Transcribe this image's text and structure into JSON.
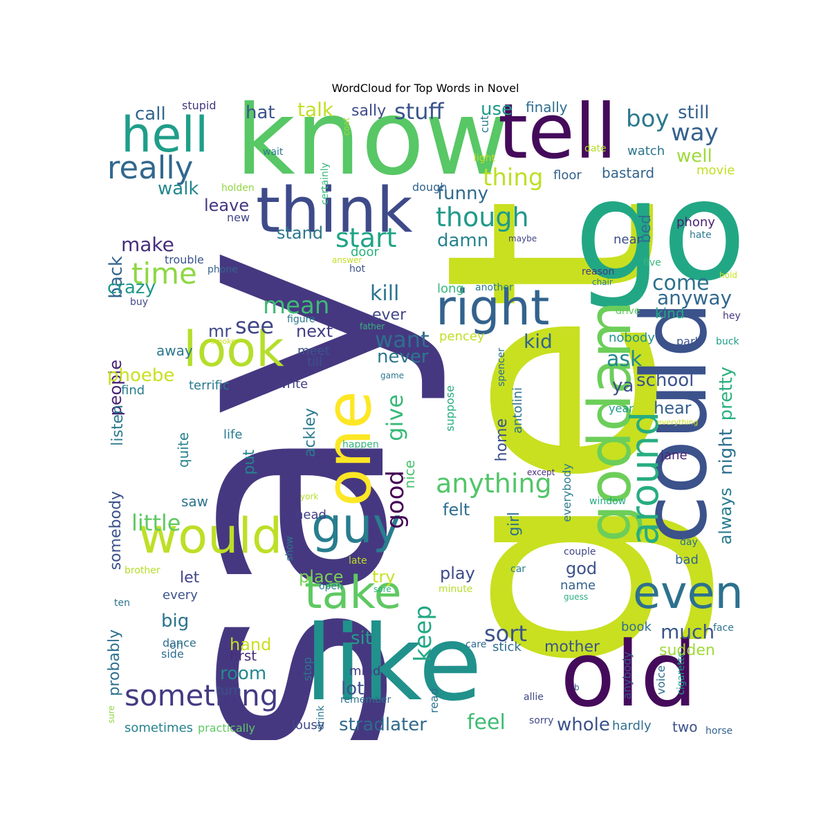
{
  "chart_data": {
    "type": "wordcloud",
    "title": "WordCloud for Top Words in Novel",
    "background": "#ffffff",
    "words": [
      {
        "text": "say",
        "color": "#463880"
      },
      {
        "text": "get",
        "color": "#c8e020"
      },
      {
        "text": "go",
        "color": "#22a785"
      },
      {
        "text": "know",
        "color": "#58c765"
      },
      {
        "text": "tell",
        "color": "#450b5b"
      },
      {
        "text": "like",
        "color": "#21918c"
      },
      {
        "text": "old",
        "color": "#450b5b"
      },
      {
        "text": "could",
        "color": "#3b528b"
      },
      {
        "text": "one",
        "color": "#fde725"
      },
      {
        "text": "think",
        "color": "#3e4a89"
      },
      {
        "text": "goddam",
        "color": "#6cce59"
      },
      {
        "text": "hell",
        "color": "#1f9e89"
      },
      {
        "text": "guy",
        "color": "#287d8e"
      },
      {
        "text": "right",
        "color": "#33638d"
      },
      {
        "text": "around",
        "color": "#27ad81"
      },
      {
        "text": "look",
        "color": "#b5de2b"
      },
      {
        "text": "would",
        "color": "#bddf26"
      },
      {
        "text": "take",
        "color": "#5ec962"
      },
      {
        "text": "even",
        "color": "#2d718e"
      },
      {
        "text": "something",
        "color": "#443a83"
      },
      {
        "text": "really",
        "color": "#31688e"
      },
      {
        "text": "time",
        "color": "#8fd744"
      },
      {
        "text": "start",
        "color": "#20a486"
      },
      {
        "text": "though",
        "color": "#1f9a8a"
      },
      {
        "text": "anything",
        "color": "#52c569"
      },
      {
        "text": "boy",
        "color": "#2a788e"
      },
      {
        "text": "way",
        "color": "#34618d"
      },
      {
        "text": "stuff",
        "color": "#3a548c"
      },
      {
        "text": "thing",
        "color": "#bddf26"
      },
      {
        "text": "mean",
        "color": "#3dbc74"
      },
      {
        "text": "want",
        "color": "#2e6e8e"
      },
      {
        "text": "keep",
        "color": "#22a884"
      },
      {
        "text": "give",
        "color": "#37b878"
      },
      {
        "text": "good",
        "color": "#440154"
      },
      {
        "text": "little",
        "color": "#5ec962"
      },
      {
        "text": "sort",
        "color": "#3b528b"
      },
      {
        "text": "much",
        "color": "#39558c"
      },
      {
        "text": "stradlater",
        "color": "#306a8e"
      },
      {
        "text": "feel",
        "color": "#3fbc73"
      },
      {
        "text": "whole",
        "color": "#3b528b"
      },
      {
        "text": "see",
        "color": "#404688"
      },
      {
        "text": "kill",
        "color": "#2b758e"
      },
      {
        "text": "talk",
        "color": "#c2df23"
      },
      {
        "text": "still",
        "color": "#34618d"
      },
      {
        "text": "well",
        "color": "#9dd93b"
      },
      {
        "text": "hat",
        "color": "#3a548c"
      },
      {
        "text": "call",
        "color": "#32658e"
      },
      {
        "text": "sally",
        "color": "#3e4c8a"
      },
      {
        "text": "use",
        "color": "#1e9b8a"
      },
      {
        "text": "finally",
        "color": "#2e6e8e"
      },
      {
        "text": "stupid",
        "color": "#453781"
      },
      {
        "text": "walk",
        "color": "#24878e"
      },
      {
        "text": "leave",
        "color": "#453781"
      },
      {
        "text": "back",
        "color": "#32658e"
      },
      {
        "text": "make",
        "color": "#472d7b"
      },
      {
        "text": "crazy",
        "color": "#1f988b"
      },
      {
        "text": "funny",
        "color": "#306a8e"
      },
      {
        "text": "damn",
        "color": "#25838e"
      },
      {
        "text": "stand",
        "color": "#2a788e"
      },
      {
        "text": "come",
        "color": "#2d718e"
      },
      {
        "text": "anyway",
        "color": "#31688e"
      },
      {
        "text": "ask",
        "color": "#23898e"
      },
      {
        "text": "school",
        "color": "#3b528b"
      },
      {
        "text": "kid",
        "color": "#33638d"
      },
      {
        "text": "ever",
        "color": "#404688"
      },
      {
        "text": "never",
        "color": "#2a788e"
      },
      {
        "text": "next",
        "color": "#433e85"
      },
      {
        "text": "mr",
        "color": "#3e4a89"
      },
      {
        "text": "people",
        "color": "#482374"
      },
      {
        "text": "phoebe",
        "color": "#c8e020"
      },
      {
        "text": "away",
        "color": "#2a788e"
      },
      {
        "text": "meet",
        "color": "#39558c"
      },
      {
        "text": "till",
        "color": "#3b528b"
      },
      {
        "text": "ya",
        "color": "#3e4c8a"
      },
      {
        "text": "hear",
        "color": "#355f8d"
      },
      {
        "text": "pretty",
        "color": "#2ab07f"
      },
      {
        "text": "night",
        "color": "#2c728e"
      },
      {
        "text": "always",
        "color": "#287c8e"
      },
      {
        "text": "bed",
        "color": "#2e6f8e"
      },
      {
        "text": "bastard",
        "color": "#33638d"
      },
      {
        "text": "movie",
        "color": "#c2df23"
      },
      {
        "text": "watch",
        "color": "#2b748e"
      },
      {
        "text": "floor",
        "color": "#34618d"
      },
      {
        "text": "near",
        "color": "#3e4c8a"
      },
      {
        "text": "phony",
        "color": "#482374"
      },
      {
        "text": "hate",
        "color": "#2a788e"
      },
      {
        "text": "five",
        "color": "#35b779"
      },
      {
        "text": "reason",
        "color": "#443a83"
      },
      {
        "text": "chair",
        "color": "#287d8e"
      },
      {
        "text": "hold",
        "color": "#c8e020"
      },
      {
        "text": "kind",
        "color": "#22a884"
      },
      {
        "text": "drive",
        "color": "#5ec962"
      },
      {
        "text": "hey",
        "color": "#46327e"
      },
      {
        "text": "nobody",
        "color": "#21918c"
      },
      {
        "text": "park",
        "color": "#3b528b"
      },
      {
        "text": "buck",
        "color": "#1f9e89"
      },
      {
        "text": "year",
        "color": "#1f9a8a"
      },
      {
        "text": "everything",
        "color": "#c8e020"
      },
      {
        "text": "jane",
        "color": "#482374"
      },
      {
        "text": "everybody",
        "color": "#2a788e"
      },
      {
        "text": "window",
        "color": "#25ab82"
      },
      {
        "text": "except",
        "color": "#472d7b"
      },
      {
        "text": "day",
        "color": "#2d708e"
      },
      {
        "text": "couple",
        "color": "#404688"
      },
      {
        "text": "bad",
        "color": "#32658e"
      },
      {
        "text": "car",
        "color": "#287c8e"
      },
      {
        "text": "guess",
        "color": "#2ab07f"
      },
      {
        "text": "book",
        "color": "#2e6e8e"
      },
      {
        "text": "face",
        "color": "#2c728e"
      },
      {
        "text": "anybody",
        "color": "#3b528b"
      },
      {
        "text": "voice",
        "color": "#2e6e8e"
      },
      {
        "text": "cigarette",
        "color": "#1e9b8a"
      },
      {
        "text": "sudden",
        "color": "#a0da39"
      },
      {
        "text": "mother",
        "color": "#3b528b"
      },
      {
        "text": "stick",
        "color": "#2e6e8e"
      },
      {
        "text": "care",
        "color": "#31688e"
      },
      {
        "text": "b",
        "color": "#39558c"
      },
      {
        "text": "allie",
        "color": "#404688"
      },
      {
        "text": "hardly",
        "color": "#2e6e8e"
      },
      {
        "text": "two",
        "color": "#3b528b"
      },
      {
        "text": "sorry",
        "color": "#3f4889"
      },
      {
        "text": "horse",
        "color": "#34618d"
      },
      {
        "text": "god",
        "color": "#3b528b"
      },
      {
        "text": "name",
        "color": "#34618d"
      },
      {
        "text": "play",
        "color": "#3e4a89"
      },
      {
        "text": "minute",
        "color": "#b5de2b"
      },
      {
        "text": "girl",
        "color": "#2d718e"
      },
      {
        "text": "felt",
        "color": "#2e6e8e"
      },
      {
        "text": "home",
        "color": "#3b528b"
      },
      {
        "text": "antolini",
        "color": "#2c728e"
      },
      {
        "text": "spencer",
        "color": "#2e6e8e"
      },
      {
        "text": "suppose",
        "color": "#25ab82"
      },
      {
        "text": "pencey",
        "color": "#c2df23"
      },
      {
        "text": "long",
        "color": "#35b779"
      },
      {
        "text": "another",
        "color": "#2a788e"
      },
      {
        "text": "maybe",
        "color": "#414487"
      },
      {
        "text": "dough",
        "color": "#33638d"
      },
      {
        "text": "light",
        "color": "#bddf26"
      },
      {
        "text": "cut",
        "color": "#287c8e"
      },
      {
        "text": "date",
        "color": "#b5de2b"
      },
      {
        "text": "coat",
        "color": "#a5db36"
      },
      {
        "text": "certainly",
        "color": "#35b779"
      },
      {
        "text": "wait",
        "color": "#287d8e"
      },
      {
        "text": "holden",
        "color": "#8fd744"
      },
      {
        "text": "new",
        "color": "#404688"
      },
      {
        "text": "door",
        "color": "#2ab07f"
      },
      {
        "text": "answer",
        "color": "#c2df23"
      },
      {
        "text": "hot",
        "color": "#3b528b"
      },
      {
        "text": "trouble",
        "color": "#3a548c"
      },
      {
        "text": "phone",
        "color": "#33638d"
      },
      {
        "text": "buy",
        "color": "#3f4889"
      },
      {
        "text": "figure",
        "color": "#2a788e"
      },
      {
        "text": "father",
        "color": "#35b779"
      },
      {
        "text": "smoke",
        "color": "#c8e020"
      },
      {
        "text": "terrific",
        "color": "#2a788e"
      },
      {
        "text": "write",
        "color": "#433e85"
      },
      {
        "text": "find",
        "color": "#287d8e"
      },
      {
        "text": "game",
        "color": "#2a788e"
      },
      {
        "text": "listen",
        "color": "#2a788e"
      },
      {
        "text": "quite",
        "color": "#26828e"
      },
      {
        "text": "ackley",
        "color": "#2a788e"
      },
      {
        "text": "nice",
        "color": "#4ac16d"
      },
      {
        "text": "life",
        "color": "#287d8e"
      },
      {
        "text": "happen",
        "color": "#35b779"
      },
      {
        "text": "put",
        "color": "#26828e"
      },
      {
        "text": "somebody",
        "color": "#3b528b"
      },
      {
        "text": "saw",
        "color": "#2c728e"
      },
      {
        "text": "york",
        "color": "#b5de2b"
      },
      {
        "text": "head",
        "color": "#433e85"
      },
      {
        "text": "show",
        "color": "#2a788e"
      },
      {
        "text": "late",
        "color": "#bddf26"
      },
      {
        "text": "brother",
        "color": "#b5de2b"
      },
      {
        "text": "let",
        "color": "#414487"
      },
      {
        "text": "place",
        "color": "#7ad151"
      },
      {
        "text": "try",
        "color": "#c8e020"
      },
      {
        "text": "open",
        "color": "#287d8e"
      },
      {
        "text": "sore",
        "color": "#2ab07f"
      },
      {
        "text": "every",
        "color": "#3b528b"
      },
      {
        "text": "ten",
        "color": "#2c728e"
      },
      {
        "text": "big",
        "color": "#2c728e"
      },
      {
        "text": "probably",
        "color": "#2d708e"
      },
      {
        "text": "oh",
        "color": "#2e6e8e"
      },
      {
        "text": "hand",
        "color": "#c8e020"
      },
      {
        "text": "first",
        "color": "#472d7b"
      },
      {
        "text": "dance",
        "color": "#2e6e8e"
      },
      {
        "text": "side",
        "color": "#2e6e8e"
      },
      {
        "text": "room",
        "color": "#23898e"
      },
      {
        "text": "sit",
        "color": "#1f9e89"
      },
      {
        "text": "stop",
        "color": "#2a788e"
      },
      {
        "text": "mind",
        "color": "#453781"
      },
      {
        "text": "turn",
        "color": "#3b528b"
      },
      {
        "text": "lot",
        "color": "#3b528b"
      },
      {
        "text": "drink",
        "color": "#2a788e"
      },
      {
        "text": "remember",
        "color": "#2c728e"
      },
      {
        "text": "read",
        "color": "#2c728e"
      },
      {
        "text": "sure",
        "color": "#8fd744"
      },
      {
        "text": "sometimes",
        "color": "#26828e"
      },
      {
        "text": "practically",
        "color": "#5ec962"
      },
      {
        "text": "lousy",
        "color": "#3e4a89"
      }
    ]
  }
}
